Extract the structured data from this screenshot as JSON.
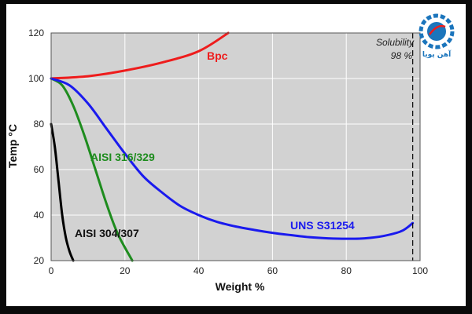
{
  "chart_data": {
    "type": "line",
    "xlabel": "Weight %",
    "ylabel": "Temp °C",
    "xlim": [
      0,
      100
    ],
    "ylim": [
      20,
      120
    ],
    "x_ticks": [
      "0",
      "20",
      "40",
      "60",
      "80",
      "100"
    ],
    "y_ticks": [
      "20",
      "40",
      "60",
      "80",
      "100",
      "120"
    ],
    "grid": true,
    "series": [
      {
        "name": "Bpc",
        "color": "#ee1c1c",
        "points": [
          [
            0,
            100
          ],
          [
            10,
            101
          ],
          [
            20,
            103.5
          ],
          [
            30,
            107
          ],
          [
            40,
            112
          ],
          [
            48,
            120
          ]
        ]
      },
      {
        "name": "AISI 316/329",
        "color": "#1e8c1e",
        "points": [
          [
            0,
            100
          ],
          [
            3,
            97
          ],
          [
            6,
            88
          ],
          [
            9,
            75
          ],
          [
            12,
            60
          ],
          [
            15,
            45
          ],
          [
            18,
            32
          ],
          [
            22,
            20
          ]
        ]
      },
      {
        "name": "AISI 304/307",
        "color": "#000000",
        "points": [
          [
            0,
            80
          ],
          [
            1,
            70
          ],
          [
            2,
            55
          ],
          [
            3,
            40
          ],
          [
            4,
            30
          ],
          [
            5,
            24
          ],
          [
            6,
            20
          ]
        ]
      },
      {
        "name": "UNS S31254",
        "color": "#1a1aee",
        "points": [
          [
            0,
            100
          ],
          [
            5,
            97
          ],
          [
            10,
            89
          ],
          [
            15,
            78
          ],
          [
            20,
            67
          ],
          [
            25,
            57
          ],
          [
            30,
            50
          ],
          [
            35,
            44
          ],
          [
            40,
            40
          ],
          [
            45,
            37
          ],
          [
            50,
            35
          ],
          [
            55,
            33.5
          ],
          [
            60,
            32.2
          ],
          [
            65,
            31.2
          ],
          [
            70,
            30.3
          ],
          [
            75,
            29.8
          ],
          [
            80,
            29.6
          ],
          [
            85,
            29.8
          ],
          [
            90,
            30.8
          ],
          [
            95,
            33
          ],
          [
            98,
            36.5
          ]
        ]
      }
    ],
    "annotations": {
      "solubility_line_x": 98,
      "solubility_label": "Solubility",
      "solubility_value": "98 %"
    }
  },
  "logo": {
    "text": "آهن پویا",
    "colors": {
      "gear": "#1b75bc",
      "accent": "#ee1c1c"
    }
  }
}
